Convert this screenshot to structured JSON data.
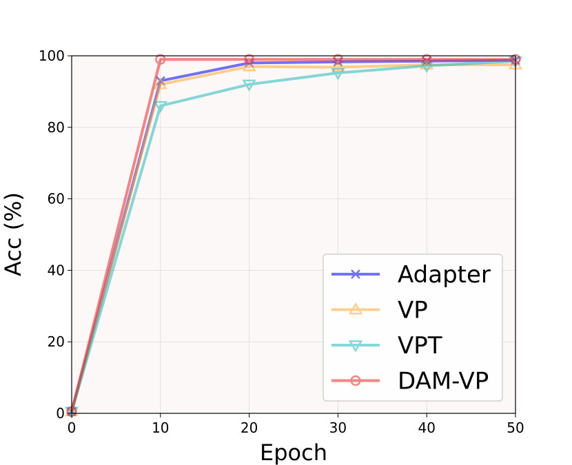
{
  "chart_data": {
    "type": "line",
    "title": "",
    "xlabel": "Epoch",
    "ylabel": "Acc (%)",
    "xlim": [
      0,
      50
    ],
    "ylim": [
      0,
      100
    ],
    "xticks": [
      0,
      10,
      20,
      30,
      40,
      50
    ],
    "yticks": [
      0,
      20,
      40,
      60,
      80,
      100
    ],
    "grid": true,
    "legend_position": "bottom-right",
    "x": [
      0,
      10,
      20,
      30,
      40,
      50
    ],
    "series": [
      {
        "name": "Adapter",
        "values": [
          0.5,
          93,
          98,
          98.3,
          98.5,
          98.7
        ],
        "color": "#0000ee",
        "marker": "x"
      },
      {
        "name": "VP",
        "values": [
          0.5,
          92,
          97,
          96.8,
          97.5,
          97.5
        ],
        "color": "#ffaa33",
        "marker": "triangle-up"
      },
      {
        "name": "VPT",
        "values": [
          0.5,
          86,
          92,
          95.2,
          97.2,
          98.5
        ],
        "color": "#22bbbb",
        "marker": "triangle-down"
      },
      {
        "name": "DAM-VP",
        "values": [
          0.5,
          99,
          99,
          99,
          99,
          99
        ],
        "color": "#ee2222",
        "marker": "circle"
      }
    ]
  }
}
